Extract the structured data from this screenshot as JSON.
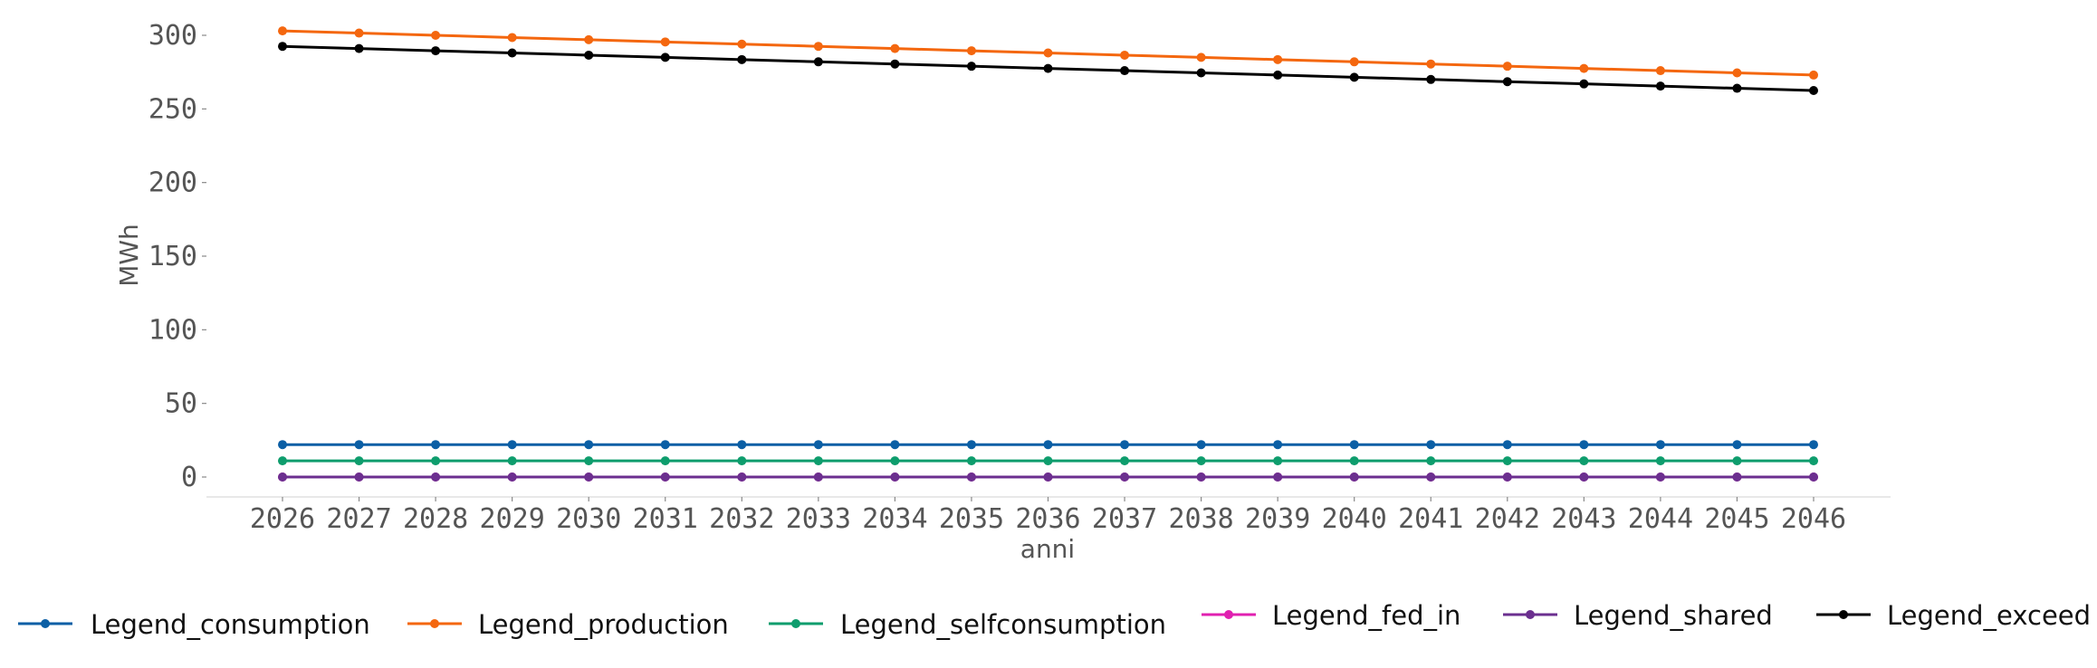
{
  "chart_data": {
    "type": "line",
    "title": "",
    "xlabel": "anni",
    "ylabel": "MWh",
    "ylim": [
      -14,
      314
    ],
    "yticks": [
      0,
      50,
      100,
      150,
      200,
      250,
      300
    ],
    "grid": false,
    "legend_position": "bottom",
    "x": [
      "2026",
      "2027",
      "2028",
      "2029",
      "2030",
      "2031",
      "2032",
      "2033",
      "2034",
      "2035",
      "2036",
      "2037",
      "2038",
      "2039",
      "2040",
      "2041",
      "2042",
      "2043",
      "2044",
      "2045",
      "2046"
    ],
    "series": [
      {
        "name": "Legend_consumption",
        "color": "#0b5fa5",
        "values": [
          22,
          22,
          22,
          22,
          22,
          22,
          22,
          22,
          22,
          22,
          22,
          22,
          22,
          22,
          22,
          22,
          22,
          22,
          22,
          22,
          22
        ]
      },
      {
        "name": "Legend_production",
        "color": "#f4670f",
        "values": [
          303,
          301.5,
          300,
          298.5,
          297,
          295.5,
          294,
          292.5,
          291,
          289.5,
          288,
          286.5,
          285,
          283.5,
          282,
          280.5,
          279,
          277.5,
          276,
          274.5,
          273
        ]
      },
      {
        "name": "Legend_selfconsumption",
        "color": "#0e9d6d",
        "values": [
          11,
          11,
          11,
          11,
          11,
          11,
          11,
          11,
          11,
          11,
          11,
          11,
          11,
          11,
          11,
          11,
          11,
          11,
          11,
          11,
          11
        ]
      },
      {
        "name": "Legend_fed_in",
        "color": "#e020b0",
        "values": [
          0,
          0,
          0,
          0,
          0,
          0,
          0,
          0,
          0,
          0,
          0,
          0,
          0,
          0,
          0,
          0,
          0,
          0,
          0,
          0,
          0
        ]
      },
      {
        "name": "Legend_shared",
        "color": "#6b2f8f",
        "values": [
          0,
          0,
          0,
          0,
          0,
          0,
          0,
          0,
          0,
          0,
          0,
          0,
          0,
          0,
          0,
          0,
          0,
          0,
          0,
          0,
          0
        ]
      },
      {
        "name": "Legend_exceed",
        "color": "#000000",
        "values": [
          292.5,
          291,
          289.5,
          288,
          286.5,
          285,
          283.5,
          282,
          280.5,
          279,
          277.5,
          276,
          274.5,
          273,
          271.5,
          270,
          268.5,
          267,
          265.5,
          264,
          262.5
        ]
      }
    ]
  }
}
